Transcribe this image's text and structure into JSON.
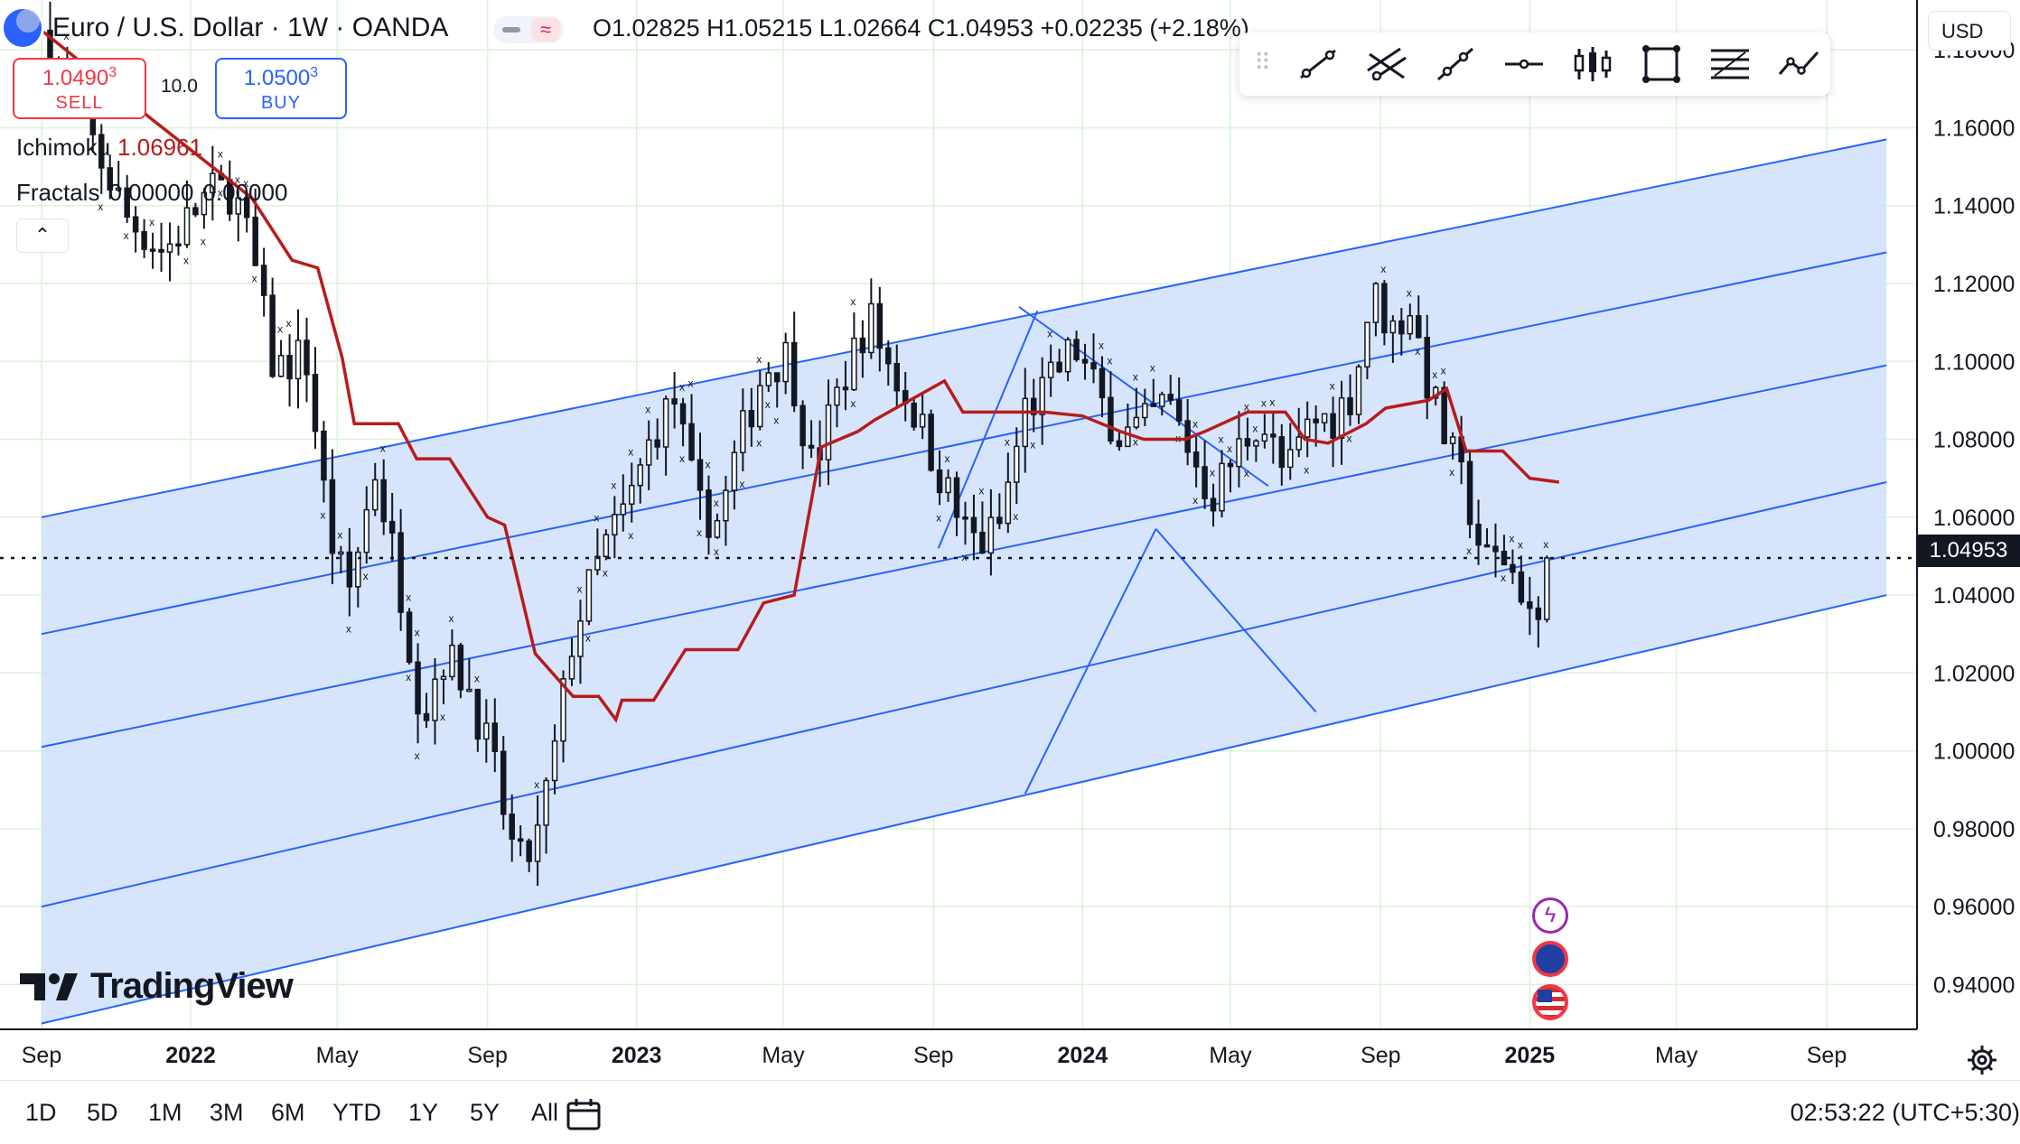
{
  "header": {
    "symbol_title": "Euro / U.S. Dollar · 1W · OANDA",
    "ohlc": {
      "o_key": "O",
      "o": "1.02825",
      "h_key": "H",
      "h": "1.05215",
      "l_key": "L",
      "l": "1.02664",
      "c_key": "C",
      "c": "1.04953",
      "change": "+0.02235 (+2.18%)"
    }
  },
  "trade": {
    "sell_price": "1.0490",
    "sell_pip": "3",
    "sell_label": "SELL",
    "spread": "10.0",
    "buy_price": "1.0500",
    "buy_pip": "3",
    "buy_label": "BUY"
  },
  "indicators": {
    "ichimoku_label": "Ichimoku",
    "ichimoku_value": "1.06961",
    "fractals_label": "Fractals",
    "fractals_value_1": "0.00000",
    "fractals_value_2": "0.00000"
  },
  "currency": "USD",
  "last_price_label": "1.04953",
  "logo_text": "TradingView",
  "timeframes": [
    "1D",
    "5D",
    "1M",
    "3M",
    "6M",
    "YTD",
    "1Y",
    "5Y",
    "All"
  ],
  "clock": "02:53:22 (UTC+5:30)",
  "colors": {
    "up": "#131722",
    "down": "#131722",
    "ichimoku": "#b71c1c",
    "channel": "#2962ff",
    "channel_fill": "#cfe0fb"
  },
  "toolbar_icons": [
    "trend-line-icon",
    "parallel-channel-icon",
    "ray-icon",
    "horizontal-line-icon",
    "long-position-icon",
    "rectangle-icon",
    "fib-icon",
    "path-icon"
  ],
  "chart_data": {
    "type": "candlestick",
    "symbol": "EUR/USD",
    "interval": "1W",
    "y_ticks": [
      "1.18000",
      "1.16000",
      "1.14000",
      "1.12000",
      "1.10000",
      "1.08000",
      "1.06000",
      "1.04000",
      "1.02000",
      "1.00000",
      "0.98000",
      "0.96000",
      "0.94000"
    ],
    "ylim": [
      0.9285,
      1.1928
    ],
    "x_ticks": [
      "Sep",
      "2022",
      "May",
      "Sep",
      "2023",
      "May",
      "Sep",
      "2024",
      "May",
      "Sep",
      "2025",
      "May",
      "Sep"
    ],
    "x_tick_dates": [
      "2021-09-01",
      "2022-01-01",
      "2022-05-01",
      "2022-09-01",
      "2023-01-01",
      "2023-05-01",
      "2023-09-01",
      "2024-01-01",
      "2024-05-01",
      "2024-09-01",
      "2025-01-01",
      "2025-05-01",
      "2025-09-01"
    ],
    "close_points": [
      [
        "2021-09-01",
        1.185
      ],
      [
        "2021-10-10",
        1.158
      ],
      [
        "2021-11-10",
        1.137
      ],
      [
        "2021-12-10",
        1.128
      ],
      [
        "2022-01-15",
        1.143
      ],
      [
        "2022-02-05",
        1.144
      ],
      [
        "2022-02-20",
        1.128
      ],
      [
        "2022-03-10",
        1.098
      ],
      [
        "2022-04-05",
        1.102
      ],
      [
        "2022-04-25",
        1.055
      ],
      [
        "2022-05-10",
        1.04
      ],
      [
        "2022-06-01",
        1.072
      ],
      [
        "2022-06-20",
        1.045
      ],
      [
        "2022-07-10",
        1.008
      ],
      [
        "2022-07-25",
        1.025
      ],
      [
        "2022-08-15",
        1.018
      ],
      [
        "2022-09-05",
        0.997
      ],
      [
        "2022-09-25",
        0.97
      ],
      [
        "2022-10-10",
        0.975
      ],
      [
        "2022-10-25",
        0.998
      ],
      [
        "2022-11-10",
        1.03
      ],
      [
        "2022-12-05",
        1.052
      ],
      [
        "2022-12-25",
        1.063
      ],
      [
        "2023-01-15",
        1.082
      ],
      [
        "2023-02-01",
        1.09
      ],
      [
        "2023-02-20",
        1.062
      ],
      [
        "2023-03-10",
        1.059
      ],
      [
        "2023-03-25",
        1.078
      ],
      [
        "2023-04-15",
        1.098
      ],
      [
        "2023-05-05",
        1.102
      ],
      [
        "2023-05-25",
        1.072
      ],
      [
        "2023-06-15",
        1.092
      ],
      [
        "2023-07-10",
        1.112
      ],
      [
        "2023-07-25",
        1.1
      ],
      [
        "2023-08-15",
        1.088
      ],
      [
        "2023-09-05",
        1.072
      ],
      [
        "2023-09-25",
        1.057
      ],
      [
        "2023-10-10",
        1.053
      ],
      [
        "2023-10-25",
        1.058
      ],
      [
        "2023-11-15",
        1.088
      ],
      [
        "2023-12-01",
        1.092
      ],
      [
        "2023-12-25",
        1.104
      ],
      [
        "2024-01-15",
        1.09
      ],
      [
        "2024-02-01",
        1.081
      ],
      [
        "2024-02-20",
        1.083
      ],
      [
        "2024-03-10",
        1.09
      ],
      [
        "2024-03-25",
        1.08
      ],
      [
        "2024-04-15",
        1.065
      ],
      [
        "2024-05-05",
        1.076
      ],
      [
        "2024-05-25",
        1.086
      ],
      [
        "2024-06-15",
        1.07
      ],
      [
        "2024-07-05",
        1.084
      ],
      [
        "2024-07-25",
        1.086
      ],
      [
        "2024-08-10",
        1.093
      ],
      [
        "2024-08-25",
        1.118
      ],
      [
        "2024-09-10",
        1.108
      ],
      [
        "2024-09-25",
        1.114
      ],
      [
        "2024-10-10",
        1.094
      ],
      [
        "2024-10-25",
        1.079
      ],
      [
        "2024-11-10",
        1.066
      ],
      [
        "2024-11-25",
        1.048
      ],
      [
        "2024-12-10",
        1.05
      ],
      [
        "2024-12-25",
        1.042
      ],
      [
        "2025-01-10",
        1.028
      ],
      [
        "2025-01-20",
        1.0495
      ]
    ],
    "ichimoku_line": [
      [
        "2021-09-01",
        1.185
      ],
      [
        "2021-12-01",
        1.162
      ],
      [
        "2022-02-20",
        1.142
      ],
      [
        "2022-03-25",
        1.126
      ],
      [
        "2022-04-15",
        1.124
      ],
      [
        "2022-05-05",
        1.101
      ],
      [
        "2022-05-15",
        1.084
      ],
      [
        "2022-06-20",
        1.084
      ],
      [
        "2022-07-05",
        1.075
      ],
      [
        "2022-08-01",
        1.075
      ],
      [
        "2022-09-01",
        1.06
      ],
      [
        "2022-09-15",
        1.058
      ],
      [
        "2022-10-10",
        1.025
      ],
      [
        "2022-11-10",
        1.014
      ],
      [
        "2022-12-01",
        1.014
      ],
      [
        "2022-12-15",
        1.008
      ],
      [
        "2022-12-20",
        1.013
      ],
      [
        "2023-01-15",
        1.013
      ],
      [
        "2023-02-10",
        1.026
      ],
      [
        "2023-03-25",
        1.026
      ],
      [
        "2023-04-15",
        1.038
      ],
      [
        "2023-05-10",
        1.04
      ],
      [
        "2023-06-01",
        1.078
      ],
      [
        "2023-07-01",
        1.082
      ],
      [
        "2023-07-15",
        1.085
      ],
      [
        "2023-09-10",
        1.095
      ],
      [
        "2023-09-25",
        1.087
      ],
      [
        "2023-12-01",
        1.087
      ],
      [
        "2024-01-01",
        1.086
      ],
      [
        "2024-02-01",
        1.082
      ],
      [
        "2024-02-20",
        1.08
      ],
      [
        "2024-03-25",
        1.08
      ],
      [
        "2024-04-10",
        1.082
      ],
      [
        "2024-05-15",
        1.087
      ],
      [
        "2024-06-15",
        1.087
      ],
      [
        "2024-07-01",
        1.08
      ],
      [
        "2024-07-20",
        1.079
      ],
      [
        "2024-08-20",
        1.084
      ],
      [
        "2024-09-05",
        1.088
      ],
      [
        "2024-10-10",
        1.09
      ],
      [
        "2024-10-25",
        1.093
      ],
      [
        "2024-11-10",
        1.077
      ],
      [
        "2024-12-10",
        1.077
      ],
      [
        "2025-01-01",
        1.07
      ],
      [
        "2025-01-25",
        1.069
      ]
    ],
    "channel": {
      "upper": [
        [
          "2021-09-01",
          1.06
        ],
        [
          "2025-10-20",
          1.157
        ]
      ],
      "lower": [
        [
          "2021-09-01",
          0.93
        ],
        [
          "2025-10-20",
          1.04
        ]
      ],
      "inner_lines": [
        [
          [
            "2021-09-01",
            1.03
          ],
          [
            "2025-10-20",
            1.128
          ]
        ],
        [
          [
            "2021-09-01",
            1.001
          ],
          [
            "2025-10-20",
            1.099
          ]
        ],
        [
          [
            "2021-09-01",
            0.96
          ],
          [
            "2025-10-20",
            1.069
          ]
        ]
      ]
    },
    "pattern_lines": [
      [
        [
          "2023-11-10",
          1.114
        ],
        [
          "2024-06-01",
          1.068
        ]
      ],
      [
        [
          "2023-09-05",
          1.052
        ],
        [
          "2023-11-25",
          1.113
        ]
      ],
      [
        [
          "2023-11-15",
          0.989
        ],
        [
          "2024-03-01",
          1.057
        ]
      ],
      [
        [
          "2024-03-01",
          1.057
        ],
        [
          "2024-07-10",
          1.01
        ]
      ]
    ],
    "last_price": 1.04953
  }
}
